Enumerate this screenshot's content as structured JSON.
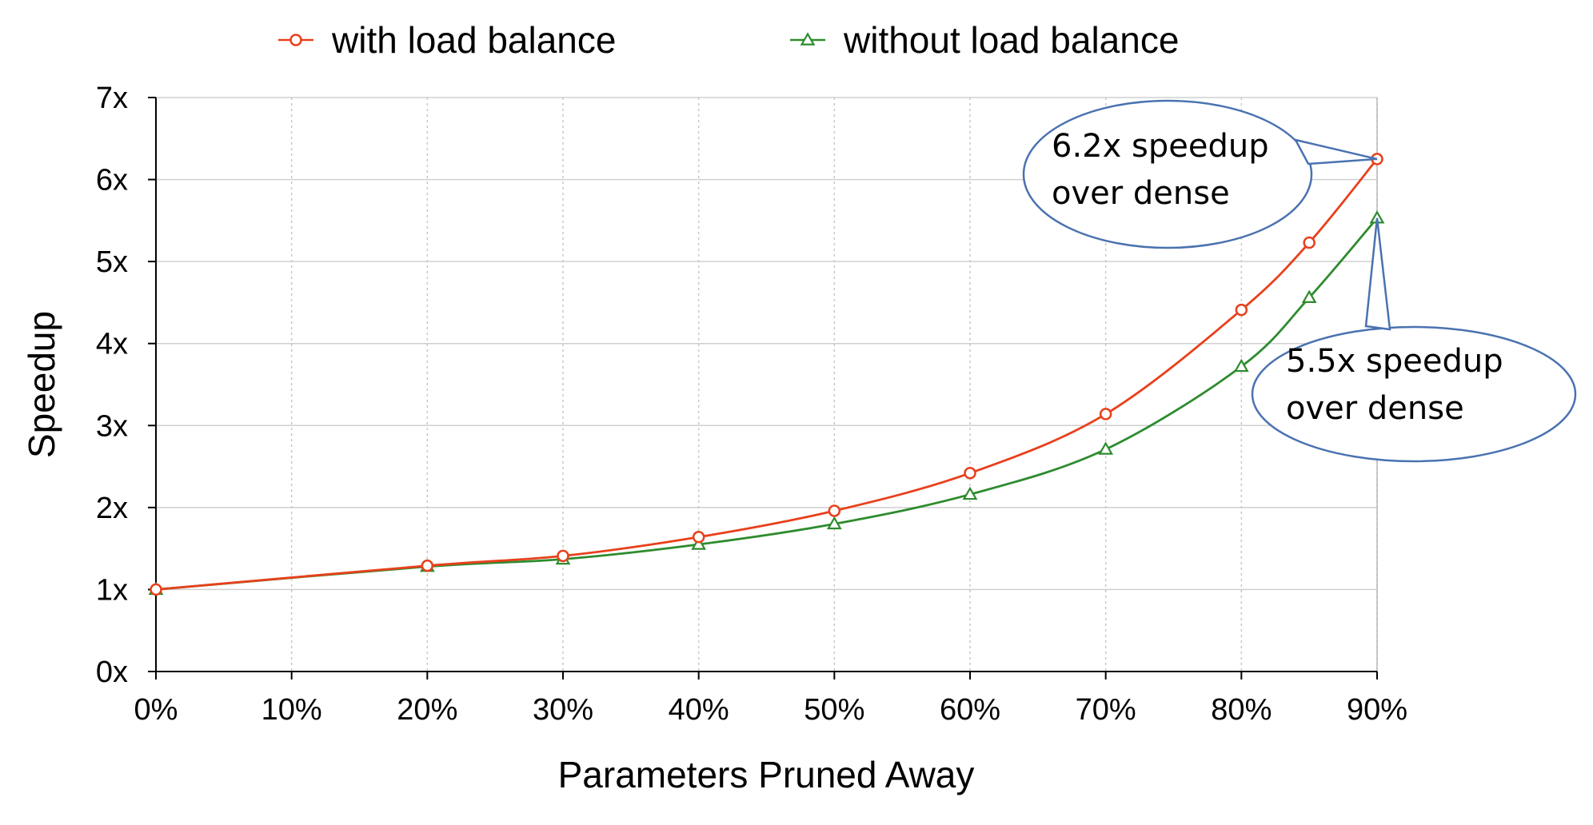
{
  "chart_data": {
    "type": "line",
    "xlabel": "Parameters Pruned Away",
    "ylabel": "Speedup",
    "x": [
      0,
      10,
      20,
      30,
      40,
      50,
      60,
      70,
      80,
      90
    ],
    "x_tick_labels": [
      "0%",
      "10%",
      "20%",
      "30%",
      "40%",
      "50%",
      "60%",
      "70%",
      "80%",
      "90%"
    ],
    "y_tick_labels": [
      "0x",
      "1x",
      "2x",
      "3x",
      "4x",
      "5x",
      "6x",
      "7x"
    ],
    "xlim": [
      0,
      90
    ],
    "ylim": [
      0,
      7
    ],
    "grid": true,
    "legend_position": "top-center",
    "series": [
      {
        "name": "with load balance",
        "color": "#e8401c",
        "marker": "circle",
        "x": [
          0,
          20,
          30,
          40,
          50,
          60,
          70,
          80,
          85,
          90
        ],
        "values": [
          1.0,
          1.29,
          1.41,
          1.64,
          1.96,
          2.42,
          3.14,
          4.41,
          5.23,
          6.25
        ]
      },
      {
        "name": "without load balance",
        "color": "#2e8b2e",
        "marker": "triangle",
        "x": [
          0,
          20,
          30,
          40,
          50,
          60,
          70,
          80,
          85,
          90
        ],
        "values": [
          1.0,
          1.28,
          1.37,
          1.55,
          1.8,
          2.16,
          2.71,
          3.72,
          4.56,
          5.53
        ]
      }
    ],
    "annotations": [
      {
        "series": 0,
        "line1": "6.2x speedup",
        "line2": "over dense"
      },
      {
        "series": 1,
        "line1": "5.5x speedup",
        "line2": "over dense"
      }
    ]
  }
}
